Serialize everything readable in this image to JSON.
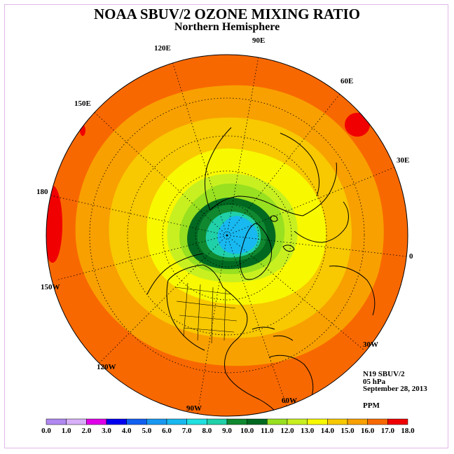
{
  "title": "NOAA SBUV/2 OZONE MIXING RATIO",
  "subtitle": "Northern Hemisphere",
  "meridians": [
    {
      "label": "90E"
    },
    {
      "label": "60E"
    },
    {
      "label": "30E"
    },
    {
      "label": "0"
    },
    {
      "label": "30W"
    },
    {
      "label": "60W"
    },
    {
      "label": "90W"
    },
    {
      "label": "120W"
    },
    {
      "label": "150W"
    },
    {
      "label": "180"
    },
    {
      "label": "150E"
    },
    {
      "label": "120E"
    }
  ],
  "info": {
    "satellite": "N19 SBUV/2",
    "pressure": "05 hPa",
    "date": "September 28, 2013",
    "units": "PPM"
  },
  "colorbar": {
    "ticks": [
      "0.0",
      "1.0",
      "2.0",
      "3.0",
      "4.0",
      "5.0",
      "6.0",
      "7.0",
      "8.0",
      "9.0",
      "10.0",
      "11.0",
      "12.0",
      "13.0",
      "14.0",
      "15.0",
      "16.0",
      "17.0",
      "18.0"
    ],
    "colors": [
      "#b088f0",
      "#d8b0f8",
      "#e000e8",
      "#0000f0",
      "#1060f0",
      "#1898f0",
      "#18b8f0",
      "#20e0e0",
      "#20d0a8",
      "#108830",
      "#006820",
      "#98e020",
      "#c8f020",
      "#f8f800",
      "#f8c800",
      "#f8a000",
      "#f86800",
      "#f00000",
      "#805040"
    ]
  },
  "map": {
    "projection": "north-polar-stereographic",
    "outer_ring_color": "#f86800",
    "ring_colors": [
      "#f8a000",
      "#f8c800",
      "#f8f800",
      "#c8f020",
      "#98e020",
      "#006820",
      "#108830",
      "#20d0a8",
      "#18b8f0"
    ]
  }
}
